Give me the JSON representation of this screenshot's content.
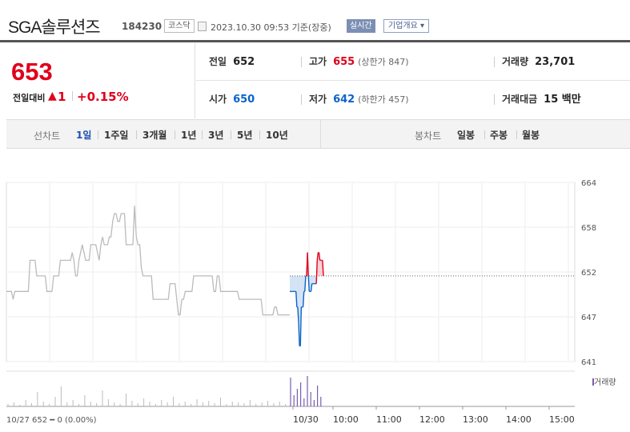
{
  "header": {
    "name": "SGA솔루션즈",
    "code": "184230",
    "market": "코스닥",
    "datetime": "2023.10.30 09:53 기준(장중)",
    "realtime": "실시간",
    "company_info": "기업개요 ▾"
  },
  "price": {
    "current": "653",
    "vs_prev_label": "전일대비",
    "arrow": "▲",
    "change": "1",
    "rate": "+0.15%"
  },
  "info": {
    "prev_close_label": "전일",
    "prev_close": "652",
    "high_label": "고가",
    "high": "655",
    "upper_limit": "(상한가 847)",
    "volume_label": "거래량",
    "volume": "23,701",
    "open_label": "시가",
    "open": "650",
    "low_label": "저가",
    "low": "642",
    "lower_limit": "(하한가 457)",
    "amount_label": "거래대금",
    "amount": "15 백만"
  },
  "periods": {
    "line_label": "선차트",
    "line_items": [
      "1일",
      "1주일",
      "3개월",
      "1년",
      "3년",
      "5년",
      "10년"
    ],
    "active": "1일",
    "candle_label": "봉차트",
    "candle_items": [
      "일봉",
      "주봉",
      "월봉"
    ]
  },
  "chart_data": {
    "type": "line",
    "y_ticks": [
      "664",
      "658",
      "652",
      "647",
      "641"
    ],
    "ylim": [
      641,
      664
    ],
    "x_ticks": [
      "10/30",
      "10:00",
      "11:00",
      "12:00",
      "13:00",
      "14:00",
      "15:00"
    ],
    "prev_day_caption": "10/27  652 ━ 0 (0.00%)",
    "volume_legend": "거래량",
    "prev_close": 652,
    "colors": {
      "up": "#e0001b",
      "down": "#0b63c9",
      "prev_line": "#bbbbbb",
      "volume": "#7b5bb0"
    },
    "prev_day_series": [
      650,
      650,
      650,
      650,
      649,
      650,
      650,
      650,
      650,
      650,
      650,
      650,
      650,
      650,
      654,
      654,
      654,
      654,
      652,
      652,
      652,
      652,
      652,
      652,
      650,
      650,
      650,
      650,
      652,
      652,
      652,
      652,
      654,
      654,
      654,
      654,
      654,
      654,
      654,
      655,
      654,
      652,
      652,
      654,
      655,
      656,
      655,
      654,
      654,
      654,
      656,
      656,
      656,
      656,
      655,
      654,
      656,
      657,
      656,
      656,
      656,
      657,
      657,
      659,
      660,
      660,
      659,
      659,
      660,
      660,
      660,
      656,
      656,
      656,
      656,
      656,
      661,
      657,
      656,
      656,
      653,
      652,
      652,
      652,
      652,
      652,
      652,
      649,
      649,
      649,
      649,
      649,
      649,
      649,
      649,
      649,
      649,
      651,
      651,
      651,
      651,
      649,
      647,
      647,
      649,
      649,
      650,
      650,
      650,
      650,
      650,
      652,
      652,
      652,
      652,
      652,
      652,
      652,
      652,
      652,
      652,
      652,
      652,
      650,
      650,
      652,
      652,
      650,
      650,
      650,
      650,
      650,
      650,
      650,
      650,
      650,
      650,
      650,
      649,
      649,
      649,
      649,
      649,
      649,
      649,
      649,
      649,
      649,
      649,
      649,
      649,
      649,
      647,
      647,
      647,
      647,
      647,
      647,
      647,
      648,
      648,
      647,
      647,
      647,
      647,
      647,
      647,
      647,
      647
    ],
    "today_series": [
      650,
      650,
      650,
      650,
      650,
      650,
      650,
      650,
      648,
      648,
      646,
      643,
      643,
      648,
      648,
      648,
      650,
      650,
      652,
      652,
      655,
      652,
      650,
      650,
      650,
      651,
      651,
      651,
      651,
      651,
      651,
      654,
      655,
      655,
      654,
      654,
      654,
      654,
      652
    ]
  }
}
